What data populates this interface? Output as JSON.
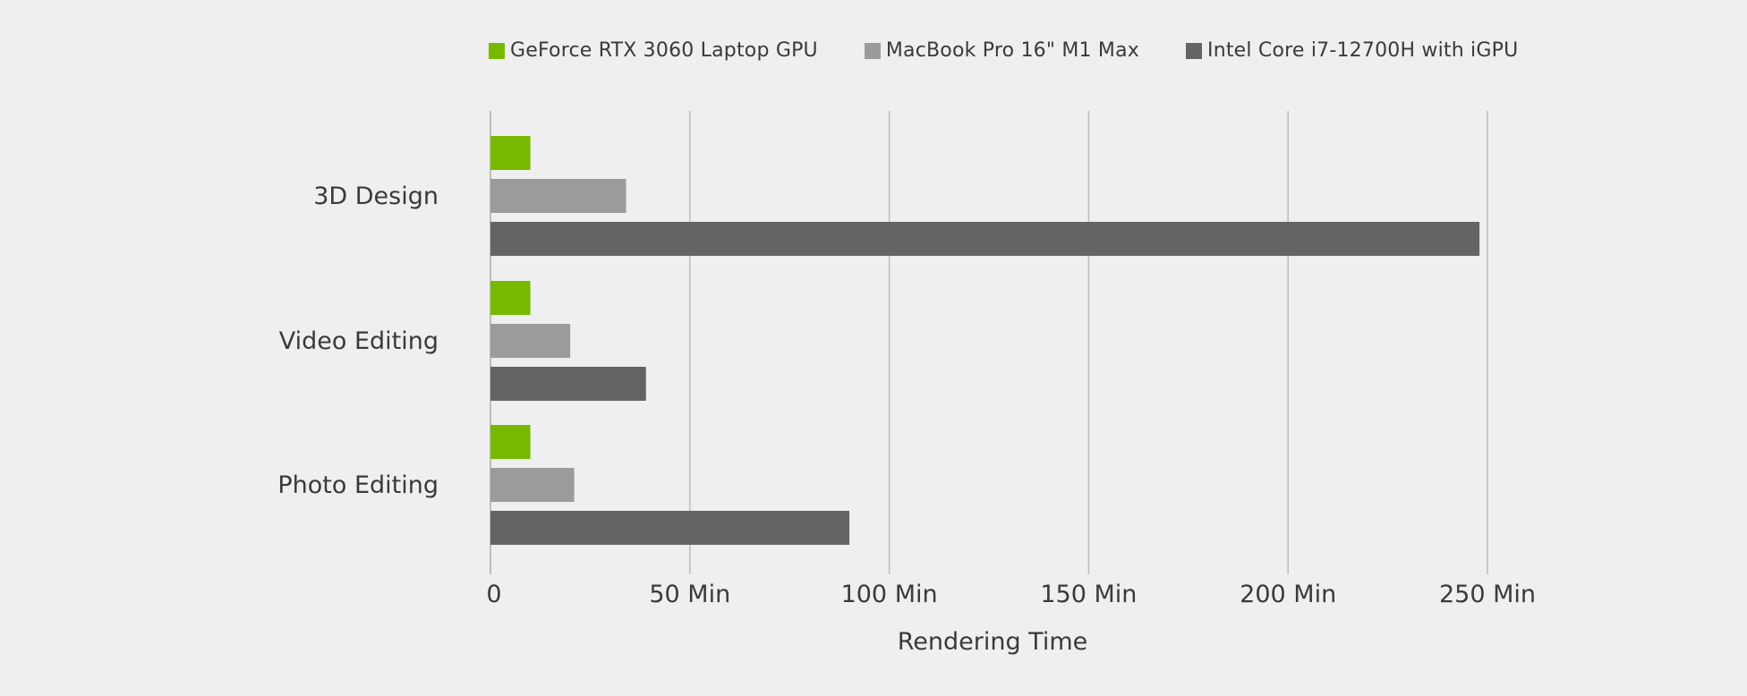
{
  "chart_data": {
    "type": "bar",
    "orientation": "horizontal",
    "categories": [
      "3D Design",
      "Video Editing",
      "Photo Editing"
    ],
    "series": [
      {
        "name": "GeForce RTX 3060 Laptop GPU",
        "color": "#76b900",
        "values": [
          10,
          10,
          10
        ]
      },
      {
        "name": "MacBook Pro 16\" M1 Max",
        "color": "#9b9b9b",
        "values": [
          34,
          20,
          21
        ]
      },
      {
        "name": "Intel Core i7-12700H with iGPU",
        "color": "#646464",
        "values": [
          248,
          39,
          90
        ]
      }
    ],
    "xlabel": "Rendering Time",
    "ylabel": "",
    "xlim": [
      0,
      250
    ],
    "xticks": [
      0,
      50,
      100,
      150,
      200,
      250
    ],
    "xtick_labels": [
      "0",
      "50 Min",
      "100 Min",
      "150 Min",
      "200 Min",
      "250 Min"
    ],
    "grid": true,
    "legend_position": "top"
  }
}
